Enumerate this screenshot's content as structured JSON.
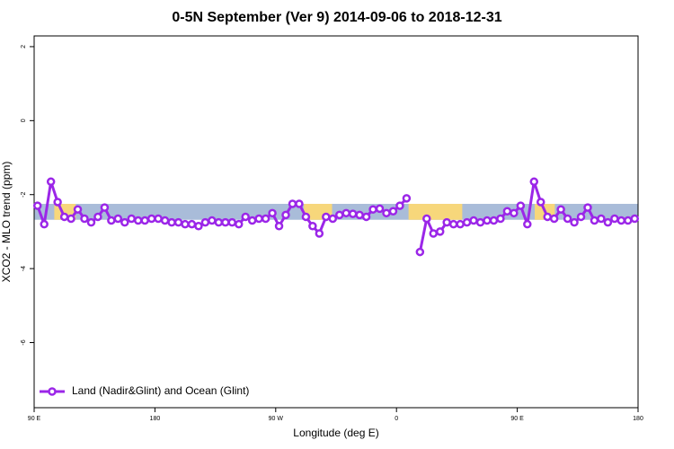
{
  "chart_data": {
    "type": "line",
    "title": "0-5N September (Ver 9)   2014-09-06 to 2018-12-31",
    "x_label": "Longitude (deg E)",
    "y_label": "XCO2 - MLO trend (ppm)",
    "xlim": [
      90,
      540
    ],
    "xticks": [
      {
        "value": 90,
        "label": "90 E"
      },
      180,
      {
        "value": 270,
        "label": "90 W"
      },
      {
        "value": 360,
        "label": "0"
      },
      {
        "value": 450,
        "label": "90 E"
      },
      {
        "value": 540,
        "label": "180"
      }
    ],
    "ylim": [
      -7.76,
      2.29
    ],
    "yticks": [
      2,
      0,
      -2,
      -4,
      -6
    ],
    "background_band": {
      "range": [
        -2.68,
        -2.25
      ],
      "color": "#a9bcd9",
      "land_color": "#f7d77b",
      "land_spans": [
        [
          105,
          121
        ],
        [
          291,
          312
        ],
        [
          369,
          409
        ],
        [
          463,
          478
        ]
      ]
    },
    "legend_position": "bottom-left",
    "x": [
      92.5,
      97.5,
      102.5,
      107.5,
      112.5,
      117.5,
      122.5,
      127.5,
      132.5,
      137.5,
      142.5,
      147.5,
      152.5,
      157.5,
      162.5,
      167.5,
      172.5,
      177.5,
      182.5,
      187.5,
      192.5,
      197.5,
      202.5,
      207.5,
      212.5,
      217.5,
      222.5,
      227.5,
      232.5,
      237.5,
      242.5,
      247.5,
      252.5,
      257.5,
      262.5,
      267.5,
      272.5,
      277.5,
      282.5,
      287.5,
      292.5,
      297.5,
      302.5,
      307.5,
      312.5,
      317.5,
      322.5,
      327.5,
      332.5,
      337.5,
      342.5,
      347.5,
      352.5,
      357.5,
      362.5,
      367.5,
      372.5,
      377.5,
      382.5,
      387.5,
      392.5,
      397.5,
      402.5,
      407.5,
      412.5,
      417.5,
      422.5,
      427.5,
      432.5,
      437.5,
      442.5,
      447.5,
      452.5,
      457.5,
      462.5,
      467.5,
      472.5,
      477.5,
      482.5,
      487.5,
      492.5,
      497.5,
      502.5,
      507.5,
      512.5,
      517.5,
      522.5,
      527.5,
      532.5,
      537.5
    ],
    "series": [
      {
        "name": "Land (Nadir&Glint) and Ocean (Glint)",
        "color": "#9b26e8",
        "values": [
          -2.3,
          -2.8,
          -1.65,
          -2.2,
          -2.6,
          -2.65,
          -2.4,
          -2.65,
          -2.75,
          -2.6,
          -2.35,
          -2.7,
          -2.65,
          -2.75,
          -2.65,
          -2.7,
          -2.7,
          -2.65,
          -2.65,
          -2.7,
          -2.75,
          -2.75,
          -2.8,
          -2.8,
          -2.85,
          -2.75,
          -2.7,
          -2.75,
          -2.75,
          -2.75,
          -2.8,
          -2.6,
          -2.7,
          -2.65,
          -2.65,
          -2.5,
          -2.85,
          -2.55,
          -2.25,
          -2.25,
          -2.6,
          -2.85,
          -3.05,
          -2.6,
          -2.65,
          -2.55,
          -2.5,
          -2.52,
          -2.55,
          -2.6,
          -2.4,
          -2.38,
          -2.5,
          -2.45,
          -2.3,
          -2.1,
          null,
          -3.55,
          -2.65,
          -3.05,
          -3.0,
          -2.75,
          -2.8,
          -2.8,
          -2.75,
          -2.7,
          -2.75,
          -2.7,
          -2.7,
          -2.65,
          -2.45,
          -2.5,
          -2.3,
          -2.8,
          -1.65,
          -2.2,
          -2.6,
          -2.65,
          -2.4,
          -2.65,
          -2.75,
          -2.6,
          -2.35,
          -2.7,
          -2.65,
          -2.75,
          -2.65,
          -2.7,
          -2.7,
          -2.65
        ]
      }
    ]
  }
}
